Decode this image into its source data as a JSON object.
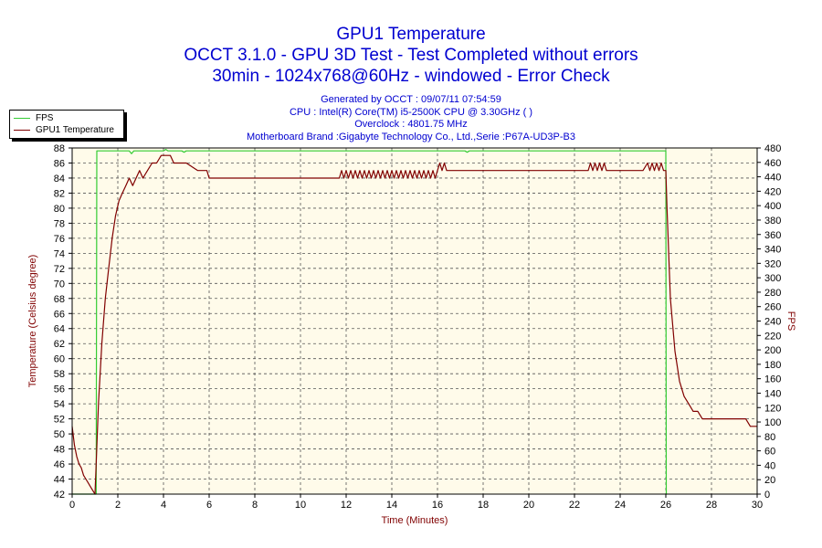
{
  "header": {
    "title": "GPU1 Temperature",
    "subtitle1": "OCCT 3.1.0 - GPU 3D Test - Test Completed without errors",
    "subtitle2": "30min - 1024x768@60Hz - windowed - Error Check",
    "generated": "Generated by OCCT : 09/07/11 07:54:59",
    "cpu": "CPU : Intel(R) Core(TM) i5-2500K CPU @ 3.30GHz (  )",
    "overclock": "Overclock : 4801.75 MHz",
    "motherboard": "Motherboard Brand :Gigabyte Technology Co., Ltd.,Serie :P67A-UD3P-B3"
  },
  "legend": {
    "fps": "FPS",
    "temp": "GPU1 Temperature"
  },
  "colors": {
    "fps": "#33cc33",
    "temp": "#800000",
    "plot_bg": "#fffbea",
    "grid": "#555555"
  },
  "chart_data": {
    "type": "line",
    "xlabel": "Time (Minutes)",
    "ylabel_left": "Temperature (Celsius degree)",
    "ylabel_right": "FPS",
    "xlim": [
      0,
      30
    ],
    "ylim_left": [
      42,
      88
    ],
    "ylim_right": [
      0,
      480
    ],
    "x_ticks": [
      0,
      2,
      4,
      6,
      8,
      10,
      12,
      14,
      16,
      18,
      20,
      22,
      24,
      26,
      28,
      30
    ],
    "y_left_ticks": [
      42,
      44,
      46,
      48,
      50,
      52,
      54,
      56,
      58,
      60,
      62,
      64,
      66,
      68,
      70,
      72,
      74,
      76,
      78,
      80,
      82,
      84,
      86,
      88
    ],
    "y_right_ticks": [
      0,
      20,
      40,
      60,
      80,
      100,
      120,
      140,
      160,
      180,
      200,
      220,
      240,
      260,
      280,
      300,
      320,
      340,
      360,
      380,
      400,
      420,
      440,
      460,
      480
    ],
    "grid": true,
    "legend_position": "top-left",
    "series": [
      {
        "name": "GPU1 Temperature",
        "axis": "left",
        "x": [
          0,
          0.1,
          0.2,
          0.3,
          0.4,
          0.5,
          0.6,
          0.7,
          0.8,
          0.9,
          1.0,
          1.05,
          1.15,
          1.3,
          1.45,
          1.6,
          1.75,
          1.9,
          2.05,
          2.2,
          2.35,
          2.5,
          2.65,
          2.8,
          2.95,
          3.1,
          3.3,
          3.5,
          3.7,
          3.9,
          4.05,
          4.15,
          4.3,
          4.45,
          4.6,
          4.8,
          5.0,
          5.5,
          5.9,
          6.0,
          7.0,
          8.0,
          9.0,
          10.0,
          11.0,
          11.7,
          11.8,
          11.9,
          12.0,
          12.1,
          12.2,
          12.3,
          12.4,
          12.5,
          12.6,
          12.7,
          12.8,
          12.9,
          13.0,
          13.1,
          13.2,
          13.3,
          13.4,
          13.5,
          13.6,
          13.7,
          13.8,
          13.9,
          14.0,
          14.1,
          14.2,
          14.3,
          14.4,
          14.5,
          14.6,
          14.7,
          14.8,
          14.9,
          15.0,
          15.1,
          15.2,
          15.3,
          15.4,
          15.5,
          15.6,
          15.7,
          15.8,
          15.9,
          16.0,
          16.1,
          16.2,
          16.3,
          16.4,
          17.0,
          18.0,
          19.0,
          20.0,
          21.0,
          22.0,
          22.6,
          22.7,
          22.8,
          22.9,
          23.0,
          23.1,
          23.2,
          23.3,
          23.4,
          24.0,
          25.0,
          25.2,
          25.3,
          25.4,
          25.5,
          25.6,
          25.7,
          25.8,
          25.9,
          26.0,
          26.05,
          26.2,
          26.4,
          26.6,
          26.8,
          27.0,
          27.2,
          27.4,
          27.6,
          27.8,
          28.0,
          28.5,
          29.0,
          29.5,
          29.7,
          30.0
        ],
        "values": [
          51,
          48.5,
          47,
          46,
          45.5,
          44.5,
          44,
          43.5,
          43,
          42.5,
          42,
          46,
          54,
          62,
          68,
          72,
          76,
          79,
          81,
          82,
          83,
          84,
          83,
          84,
          85,
          84,
          85,
          86,
          86,
          87,
          87,
          87,
          87,
          86,
          86,
          86,
          86,
          85,
          85,
          84,
          84,
          84,
          84,
          84,
          84,
          84,
          85,
          84,
          85,
          84,
          85,
          84,
          85,
          84,
          85,
          84,
          85,
          84,
          85,
          84,
          85,
          84,
          85,
          84,
          85,
          84,
          85,
          84,
          85,
          84,
          85,
          84,
          85,
          84,
          85,
          84,
          85,
          84,
          85,
          84,
          85,
          84,
          85,
          84,
          85,
          84,
          85,
          84,
          85,
          86,
          85,
          86,
          85,
          85,
          85,
          85,
          85,
          85,
          85,
          85,
          86,
          85,
          86,
          85,
          86,
          85,
          86,
          85,
          85,
          85,
          86,
          85,
          86,
          85,
          86,
          85,
          86,
          85,
          85,
          80,
          68,
          61,
          57,
          55,
          54,
          53,
          53,
          52,
          52,
          52,
          52,
          52,
          52,
          51,
          51
        ]
      },
      {
        "name": "FPS",
        "axis": "right",
        "x": [
          0,
          1.0,
          1.05,
          1.08,
          2.5,
          2.6,
          2.7,
          4.0,
          4.1,
          4.2,
          4.8,
          4.9,
          5.0,
          6.0,
          17.2,
          17.3,
          17.4,
          26.0,
          26.02,
          26.05
        ],
        "values": [
          0,
          0,
          0,
          476,
          476,
          472,
          476,
          476,
          478,
          476,
          476,
          474,
          476,
          476,
          476,
          474,
          476,
          476,
          0,
          0
        ]
      }
    ]
  }
}
